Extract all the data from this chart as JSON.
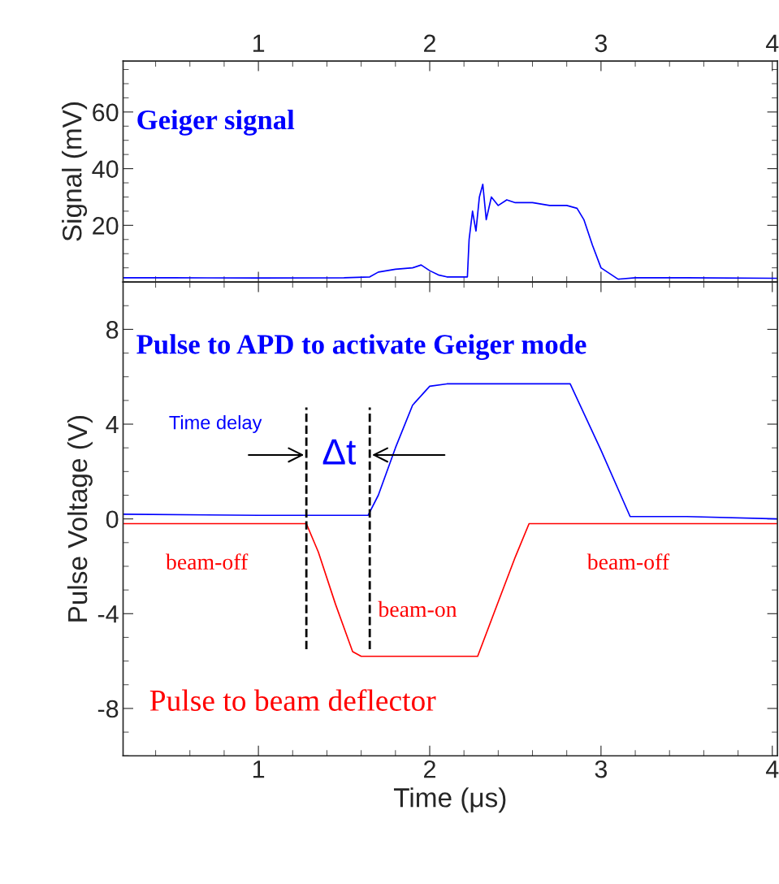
{
  "chart_data": [
    {
      "type": "line",
      "ylabel": "Signal (mV)",
      "xlim": [
        0.21,
        4.03
      ],
      "xticks": [
        1,
        2,
        3,
        4
      ],
      "ylim": [
        0,
        78
      ],
      "yticks": [
        20,
        40,
        60
      ],
      "legend": false,
      "grid": false,
      "line_style": "solid",
      "marker": "none",
      "series": [
        {
          "name": "Geiger signal",
          "color": "#0000ff",
          "x": [
            0.21,
            0.5,
            1.0,
            1.5,
            1.65,
            1.7,
            1.8,
            1.9,
            1.95,
            2.0,
            2.05,
            2.1,
            2.22,
            2.23,
            2.25,
            2.27,
            2.29,
            2.31,
            2.33,
            2.36,
            2.4,
            2.45,
            2.5,
            2.6,
            2.7,
            2.8,
            2.86,
            2.9,
            2.95,
            3.0,
            3.05,
            3.1,
            3.2,
            3.5,
            4.03
          ],
          "values": [
            1.5,
            1.5,
            1.4,
            1.5,
            1.8,
            3.5,
            4.5,
            5.0,
            6.0,
            4.0,
            2.5,
            1.8,
            1.8,
            15,
            25,
            18,
            30,
            34.5,
            22,
            30,
            27,
            29,
            28,
            28,
            27,
            27,
            26,
            22,
            13,
            5,
            3,
            1,
            1.5,
            1.5,
            1.3
          ]
        }
      ]
    },
    {
      "type": "line",
      "xlabel": "Time (μs)",
      "ylabel": "Pulse Voltage (V)",
      "xlim": [
        0.21,
        4.03
      ],
      "xticks": [
        1,
        2,
        3,
        4
      ],
      "ylim": [
        -10,
        10
      ],
      "yticks": [
        -8,
        -4,
        0,
        4,
        8
      ],
      "legend": false,
      "grid": false,
      "line_style": "solid",
      "marker": "none",
      "series": [
        {
          "name": "Pulse to APD to activate Geiger mode",
          "color": "#0000ff",
          "x": [
            0.21,
            1.0,
            1.64,
            1.7,
            1.8,
            1.9,
            2.0,
            2.1,
            2.5,
            2.82,
            3.0,
            3.17,
            3.5,
            4.03
          ],
          "values": [
            0.2,
            0.15,
            0.15,
            1.0,
            3.0,
            4.8,
            5.6,
            5.7,
            5.7,
            5.7,
            2.9,
            0.1,
            0.1,
            0.0
          ]
        },
        {
          "name": "Pulse to beam deflector",
          "color": "#ff0000",
          "x": [
            0.21,
            1.0,
            1.28,
            1.35,
            1.45,
            1.55,
            1.6,
            2.0,
            2.28,
            2.4,
            2.5,
            2.58,
            3.0,
            4.03
          ],
          "values": [
            -0.2,
            -0.2,
            -0.2,
            -1.4,
            -3.6,
            -5.6,
            -5.8,
            -5.8,
            -5.8,
            -3.5,
            -1.6,
            -0.2,
            -0.2,
            -0.2
          ]
        }
      ],
      "ref_lines": [
        {
          "axis": "x",
          "value": 1.28,
          "color": "#000000",
          "line_style": "dashed"
        },
        {
          "axis": "x",
          "value": 1.65,
          "color": "#000000",
          "line_style": "dashed"
        }
      ],
      "annotations": [
        "Time delay",
        "Δt",
        "beam-off",
        "beam-on",
        "beam-off"
      ]
    }
  ]
}
